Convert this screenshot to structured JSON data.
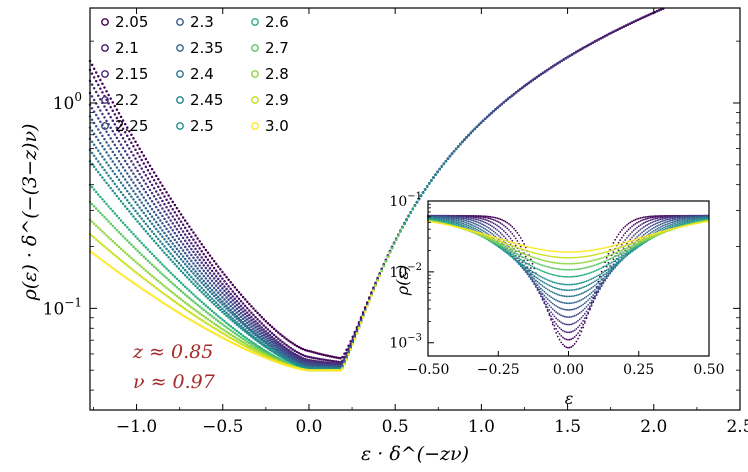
{
  "chart_data": [
    {
      "id": "main",
      "type": "scatter",
      "scale": "semilogy",
      "xlabel": "ε · δ^(−zν)",
      "ylabel": "ρ(ε) · δ^(−(3−z)ν)",
      "xlim": [
        -1.27,
        2.5
      ],
      "ylim": [
        0.032,
        2.9
      ],
      "x_ticks": [
        -1.0,
        -0.5,
        0.0,
        0.5,
        1.0,
        1.5,
        2.0,
        2.5
      ],
      "x_tick_labels": [
        "−1.0",
        "−0.5",
        "0.0",
        "0.5",
        "1.0",
        "1.5",
        "2.0",
        "2.5"
      ],
      "y_ticks": [
        0.1,
        1.0
      ],
      "y_tick_labels": [
        {
          "base": "10",
          "exp": "−1"
        },
        {
          "base": "10",
          "exp": "0"
        }
      ],
      "legend_location": "top-left",
      "legend_columns": 3,
      "annotations": [
        "z ≈ 0.85",
        "ν ≈ 0.97"
      ],
      "annotation_color": "#a52a2a",
      "series": [
        {
          "name": "2.05",
          "color": "#440154",
          "peak": 0.062,
          "left": 1.6,
          "xmax": 2.6
        },
        {
          "name": "2.1",
          "color": "#471365",
          "peak": 0.058,
          "left": 1.45,
          "xmax": 2.2
        },
        {
          "name": "2.15",
          "color": "#482475",
          "peak": 0.056,
          "left": 1.28,
          "xmax": 1.78
        },
        {
          "name": "2.2",
          "color": "#453781",
          "peak": 0.055,
          "left": 1.12,
          "xmax": 1.55
        },
        {
          "name": "2.25",
          "color": "#3f4788",
          "peak": 0.054,
          "left": 0.98,
          "xmax": 1.2
        },
        {
          "name": "2.3",
          "color": "#39568c",
          "peak": 0.053,
          "left": 0.86,
          "xmax": 1.1
        },
        {
          "name": "2.35",
          "color": "#32658e",
          "peak": 0.052,
          "left": 0.76,
          "xmax": 1.0
        },
        {
          "name": "2.4",
          "color": "#2c738e",
          "peak": 0.052,
          "left": 0.67,
          "xmax": 0.9
        },
        {
          "name": "2.45",
          "color": "#26828e",
          "peak": 0.051,
          "left": 0.59,
          "xmax": 0.8
        },
        {
          "name": "2.5",
          "color": "#21918c",
          "peak": 0.051,
          "left": 0.52,
          "xmax": 0.72
        },
        {
          "name": "2.6",
          "color": "#27ad81",
          "peak": 0.05,
          "left": 0.4,
          "xmax": 0.62
        },
        {
          "name": "2.7",
          "color": "#5cc863",
          "peak": 0.05,
          "left": 0.33,
          "xmax": 0.55
        },
        {
          "name": "2.8",
          "color": "#8fd744",
          "peak": 0.05,
          "left": 0.27,
          "xmax": 0.48
        },
        {
          "name": "2.9",
          "color": "#c8e020",
          "peak": 0.05,
          "left": 0.23,
          "xmax": 0.42
        },
        {
          "name": "3.0",
          "color": "#fde725",
          "peak": 0.05,
          "left": 0.19,
          "xmax": 0.38
        }
      ]
    },
    {
      "id": "inset",
      "type": "scatter",
      "scale": "semilogy",
      "xlabel": "ε",
      "ylabel": "ρ(ε)",
      "xlim": [
        -0.5,
        0.5
      ],
      "ylim": [
        0.00065,
        0.1
      ],
      "x_ticks": [
        -0.5,
        -0.25,
        0.0,
        0.25,
        0.5
      ],
      "x_tick_labels": [
        "−0.50",
        "−0.25",
        "0.00",
        "0.25",
        "0.50"
      ],
      "y_ticks": [
        0.001,
        0.01,
        0.1
      ],
      "y_tick_labels": [
        {
          "base": "10",
          "exp": "−3"
        },
        {
          "base": "10",
          "exp": "−2"
        },
        {
          "base": "10",
          "exp": "−1"
        }
      ],
      "edge_value": 0.062,
      "min_values": [
        0.00085,
        0.0011,
        0.0014,
        0.0018,
        0.0023,
        0.0029,
        0.0036,
        0.0045,
        0.0055,
        0.0066,
        0.0085,
        0.0107,
        0.013,
        0.0158,
        0.019
      ]
    }
  ]
}
